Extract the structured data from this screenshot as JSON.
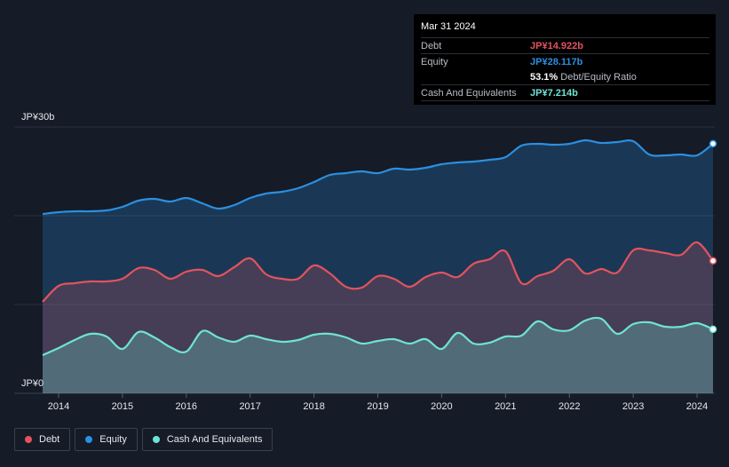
{
  "chart_data": {
    "type": "area",
    "title": "",
    "xlabel": "",
    "ylabel": "",
    "ylim": [
      0,
      30
    ],
    "y_unit": "JP¥ billions",
    "y_tick_labels": [
      "JP¥30b",
      "JP¥0"
    ],
    "x_tick_labels": [
      "2014",
      "2015",
      "2016",
      "2017",
      "2018",
      "2019",
      "2020",
      "2021",
      "2022",
      "2023",
      "2024"
    ],
    "x": [
      2013.75,
      2014.0,
      2014.25,
      2014.5,
      2014.75,
      2015.0,
      2015.25,
      2015.5,
      2015.75,
      2016.0,
      2016.25,
      2016.5,
      2016.75,
      2017.0,
      2017.25,
      2017.5,
      2017.75,
      2018.0,
      2018.25,
      2018.5,
      2018.75,
      2019.0,
      2019.25,
      2019.5,
      2019.75,
      2020.0,
      2020.25,
      2020.5,
      2020.75,
      2021.0,
      2021.25,
      2021.5,
      2021.75,
      2022.0,
      2022.25,
      2022.5,
      2022.75,
      2023.0,
      2023.25,
      2023.5,
      2023.75,
      2024.0,
      2024.25
    ],
    "series": [
      {
        "name": "Debt",
        "color": "#e2535e",
        "values": [
          10.3,
          12.1,
          12.4,
          12.6,
          12.6,
          12.9,
          14.1,
          13.9,
          12.9,
          13.7,
          13.9,
          13.2,
          14.2,
          15.2,
          13.4,
          12.9,
          12.9,
          14.4,
          13.5,
          12.0,
          11.9,
          13.2,
          12.9,
          12.0,
          13.1,
          13.6,
          13.1,
          14.6,
          15.1,
          16.0,
          12.4,
          13.2,
          13.8,
          15.1,
          13.5,
          14.0,
          13.6,
          16.1,
          16.1,
          15.8,
          15.6,
          17.0,
          14.922
        ]
      },
      {
        "name": "Equity",
        "color": "#2c8fe0",
        "values": [
          20.2,
          20.4,
          20.5,
          20.5,
          20.6,
          21.0,
          21.7,
          21.9,
          21.6,
          22.0,
          21.4,
          20.8,
          21.2,
          22.0,
          22.5,
          22.7,
          23.1,
          23.8,
          24.6,
          24.8,
          25.0,
          24.8,
          25.3,
          25.2,
          25.4,
          25.8,
          26.0,
          26.1,
          26.3,
          26.6,
          27.9,
          28.1,
          28.0,
          28.1,
          28.5,
          28.2,
          28.3,
          28.4,
          26.9,
          26.8,
          26.9,
          26.8,
          28.117
        ]
      },
      {
        "name": "Cash And Equivalents",
        "color": "#6fe3d5",
        "values": [
          4.3,
          5.1,
          6.0,
          6.7,
          6.4,
          5.0,
          6.9,
          6.3,
          5.2,
          4.7,
          7.0,
          6.3,
          5.8,
          6.5,
          6.1,
          5.8,
          6.0,
          6.6,
          6.7,
          6.3,
          5.6,
          5.9,
          6.1,
          5.6,
          6.1,
          5.0,
          6.8,
          5.6,
          5.7,
          6.4,
          6.5,
          8.1,
          7.2,
          7.1,
          8.2,
          8.4,
          6.7,
          7.8,
          8.0,
          7.5,
          7.5,
          7.9,
          7.214
        ]
      }
    ],
    "legend_position": "bottom-left",
    "grid": true
  },
  "tooltip": {
    "date": "Mar 31 2024",
    "rows": [
      {
        "label": "Debt",
        "value": "JP¥14.922b",
        "color": "#e2535e"
      },
      {
        "label": "Equity",
        "value": "JP¥28.117b",
        "color": "#2c8fe0"
      },
      {
        "label": "",
        "value": "53.1%",
        "suffix": "Debt/Equity Ratio",
        "color": "#ffffff"
      },
      {
        "label": "Cash And Equivalents",
        "value": "JP¥7.214b",
        "color": "#6fe3d5"
      }
    ]
  },
  "legend": [
    {
      "label": "Debt",
      "color": "#e2535e"
    },
    {
      "label": "Equity",
      "color": "#2c8fe0"
    },
    {
      "label": "Cash And Equivalents",
      "color": "#6fe3d5"
    }
  ]
}
